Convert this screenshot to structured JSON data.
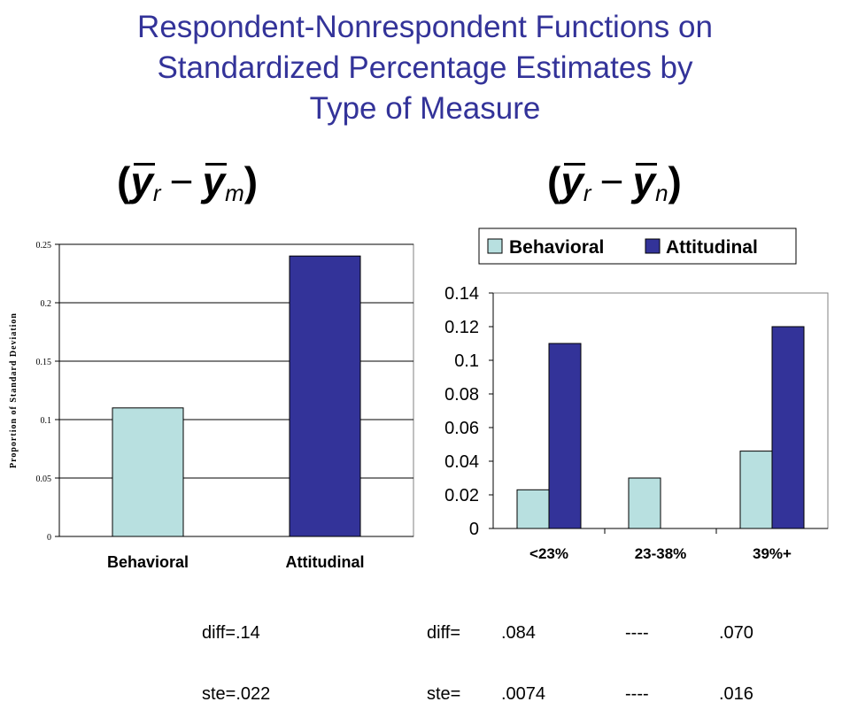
{
  "title": {
    "line1": "Respondent-Nonrespondent Functions on",
    "line2": "Standardized Percentage Estimates by",
    "line3": "Type of Measure"
  },
  "formulas": {
    "left": {
      "open": "(",
      "y": "y",
      "sub_r": "r",
      "minus": "−",
      "sub2": "m",
      "close": ")"
    },
    "right": {
      "open": "(",
      "y": "y",
      "sub_r": "r",
      "minus": "−",
      "sub2": "n",
      "close": ")"
    }
  },
  "colors": {
    "behavioral": "#b8e0e0",
    "attitudinal": "#333399",
    "title": "#333399"
  },
  "chart_data": [
    {
      "type": "bar",
      "categories": [
        "Behavioral",
        "Attitudinal"
      ],
      "series": [
        {
          "values": [
            0.11,
            0.24
          ]
        }
      ],
      "ylabel": "Proportion of Standard Deviation",
      "ylim": [
        0,
        0.25
      ],
      "yticks": [
        0,
        0.05,
        0.1,
        0.15,
        0.2,
        0.25
      ],
      "ytick_labels": [
        "0",
        "0.05",
        "0.1",
        "0.15",
        "0.2",
        "0.25"
      ],
      "grid": true
    },
    {
      "type": "bar",
      "categories": [
        "<23%",
        "23-38%",
        "39%+"
      ],
      "series": [
        {
          "name": "Behavioral",
          "values": [
            0.023,
            0.03,
            0.046
          ]
        },
        {
          "name": "Attitudinal",
          "values": [
            0.11,
            0.0,
            0.12
          ]
        }
      ],
      "ylim": [
        0,
        0.14
      ],
      "yticks": [
        0,
        0.02,
        0.04,
        0.06,
        0.08,
        0.1,
        0.12,
        0.14
      ],
      "ytick_labels": [
        "0",
        "0.02",
        "0.04",
        "0.06",
        "0.08",
        "0.1",
        "0.12",
        "0.14"
      ],
      "grid": false,
      "legend": "top"
    }
  ],
  "stats": {
    "left_diff": "diff=.14",
    "left_ste": "ste=.022",
    "right_diff_label": "diff=",
    "right_diff_values": [
      ".084",
      "----",
      ".070"
    ],
    "right_ste_label": "ste=",
    "right_ste_values": [
      ".0074",
      "----",
      ".016"
    ]
  }
}
